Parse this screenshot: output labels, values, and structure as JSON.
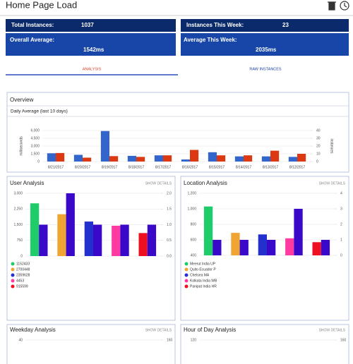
{
  "header": {
    "title": "Home Page Load"
  },
  "stats": [
    {
      "label": "Total Instances:",
      "value": "1037"
    },
    {
      "label": "Instances This Week:",
      "value": "23"
    },
    {
      "label": "Overall Average:",
      "value": "1542ms"
    },
    {
      "label": "Average This Week:",
      "value": "2035ms"
    }
  ],
  "tabs": [
    "ANALYSIS",
    "RAW INSTANCES"
  ],
  "chart_data": [
    {
      "type": "bar",
      "title": "Overview",
      "subtitle": "Daily Average (last 10 days)",
      "ylabel": "milliseconds",
      "y2label": "instances",
      "categories": [
        "8/21/2017",
        "8/20/2017",
        "8/19/2017",
        "8/18/2017",
        "8/17/2017",
        "8/16/2017",
        "8/15/2017",
        "8/14/2017",
        "8/13/2017",
        "8/12/2017"
      ],
      "series": [
        {
          "color": "#3366cc",
          "values": [
            1600,
            1300,
            5900,
            1100,
            1200,
            400,
            1800,
            1000,
            1000,
            900
          ]
        },
        {
          "color": "#dc3912",
          "axis": "y2",
          "values": [
            11,
            5,
            7,
            6,
            8,
            15,
            8,
            8,
            14,
            10
          ]
        }
      ],
      "ylim": [
        0,
        6000
      ],
      "yticks": [
        0,
        {
          "value": 1500,
          "label": "1,500"
        },
        {
          "value": 3000,
          "label": "3,000"
        },
        {
          "value": 4500,
          "label": "4,500"
        },
        {
          "value": 6000,
          "label": "6,000"
        }
      ],
      "y2lim": [
        0,
        40
      ],
      "y2ticks": [
        0,
        10,
        20,
        30,
        40
      ],
      "grid": true
    },
    {
      "type": "bar",
      "title": "User Analysis",
      "action": "SHOW DETAILS",
      "categories": [
        "1152433",
        "2700448",
        "2359628",
        "4453",
        "915599"
      ],
      "series": [
        {
          "colors": [
            "#1fcc6a",
            "#f0a432",
            "#2430cc",
            "#ff3aa0",
            "#ee1020"
          ],
          "values": [
            2520,
            2000,
            1650,
            1450,
            1100
          ]
        },
        {
          "color": "#3a08c8",
          "axis": "y2",
          "values": [
            1,
            2,
            1,
            1,
            1
          ]
        }
      ],
      "ylim": [
        0,
        3000
      ],
      "yticks": [
        0,
        750,
        {
          "value": 1500,
          "label": "1,500"
        },
        {
          "value": 2250,
          "label": "2,250"
        },
        {
          "value": 3000,
          "label": "3,000"
        }
      ],
      "y2lim": [
        0,
        2
      ],
      "y2ticks": [
        {
          "value": 0,
          "label": "0.0"
        },
        0.5,
        {
          "value": 1,
          "label": "1.0"
        },
        1.5,
        {
          "value": 2,
          "label": "2.0"
        }
      ],
      "grid": true,
      "legend": "bottom"
    },
    {
      "type": "bar",
      "title": "Location Analysis",
      "action": "SHOW DETAILS",
      "categories": [
        "Meerut India UP",
        "Quito Ecuador P",
        "Chelsea MA",
        "Kolkata India WB",
        "Panipat India HR"
      ],
      "series": [
        {
          "colors": [
            "#1fcc6a",
            "#f0a432",
            "#2430cc",
            "#ff3aa0",
            "#ee1020"
          ],
          "values": [
            1030,
            690,
            670,
            620,
            570
          ]
        },
        {
          "color": "#3a08c8",
          "axis": "y2",
          "values": [
            1,
            1,
            1,
            3,
            1
          ]
        }
      ],
      "ylim": [
        400,
        1200
      ],
      "yticks": [
        400,
        600,
        800,
        {
          "value": 1000,
          "label": "1,000"
        },
        {
          "value": 1200,
          "label": "1,200"
        }
      ],
      "y2lim": [
        0,
        4
      ],
      "y2ticks": [
        0,
        1,
        2,
        3,
        4
      ],
      "grid": true,
      "legend": "bottom"
    },
    {
      "type": "bar",
      "title": "Weekday Analysis",
      "action": "SHOW DETAILS",
      "yticks": [
        40
      ],
      "y2ticks": [
        160
      ]
    },
    {
      "type": "bar",
      "title": "Hour of Day Analysis",
      "action": "SHOW DETAILS",
      "yticks": [
        120
      ],
      "y2ticks": [
        160
      ]
    }
  ]
}
